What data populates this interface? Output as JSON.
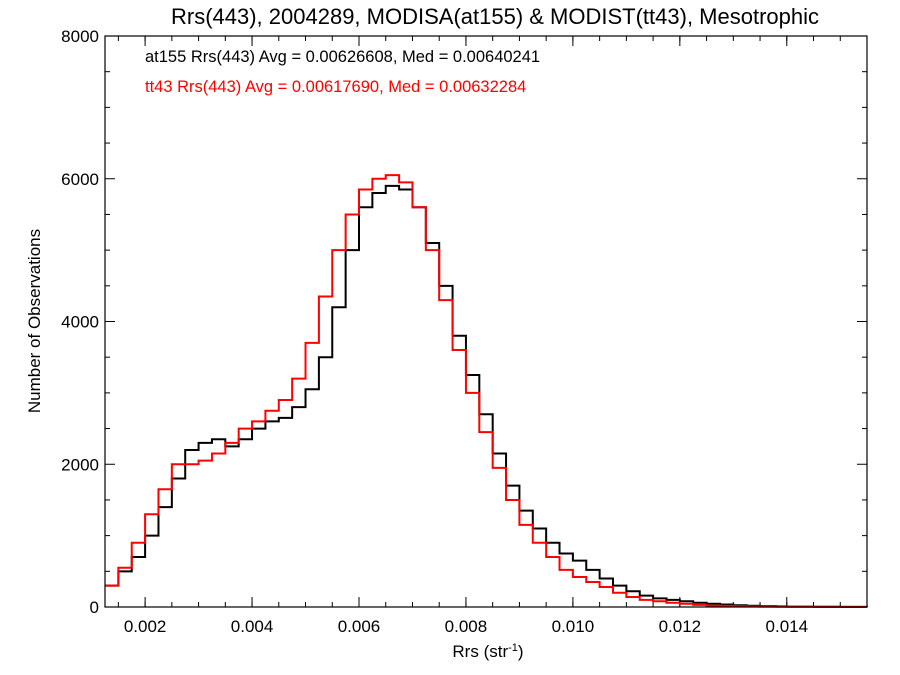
{
  "chart_data": {
    "type": "line",
    "step": true,
    "title": "Rrs(443), 2004289, MODISA(at155) & MODIST(tt43), Mesotrophic",
    "xlabel": "Rrs (str",
    "xlabel_sup": "-1",
    "xlabel_close": ")",
    "ylabel": "Number of Observations",
    "xlim": [
      0.00125,
      0.0155
    ],
    "ylim": [
      0,
      8000
    ],
    "x_ticks": [
      {
        "value": 0.002,
        "label": "0.002"
      },
      {
        "value": 0.004,
        "label": "0.004"
      },
      {
        "value": 0.006,
        "label": "0.006"
      },
      {
        "value": 0.008,
        "label": "0.008"
      },
      {
        "value": 0.01,
        "label": "0.010"
      },
      {
        "value": 0.012,
        "label": "0.012"
      },
      {
        "value": 0.014,
        "label": "0.014"
      }
    ],
    "y_ticks": [
      {
        "value": 0,
        "label": "0"
      },
      {
        "value": 2000,
        "label": "2000"
      },
      {
        "value": 4000,
        "label": "4000"
      },
      {
        "value": 6000,
        "label": "6000"
      },
      {
        "value": 8000,
        "label": "8000"
      }
    ],
    "annotations": [
      {
        "text": "at155 Rrs(443) Avg = 0.00626608, Med = 0.00640241",
        "color": "#000000"
      },
      {
        "text": "tt43 Rrs(443) Avg = 0.00617690, Med = 0.00632284",
        "color": "#ff0000"
      }
    ],
    "series": [
      {
        "color": "#000000",
        "x": [
          0.00125,
          0.0015,
          0.00175,
          0.002,
          0.00225,
          0.0025,
          0.00275,
          0.003,
          0.00325,
          0.0035,
          0.00375,
          0.004,
          0.00425,
          0.0045,
          0.00475,
          0.005,
          0.00525,
          0.0055,
          0.00575,
          0.006,
          0.00625,
          0.0065,
          0.00675,
          0.007,
          0.00725,
          0.0075,
          0.00775,
          0.008,
          0.00825,
          0.0085,
          0.00875,
          0.009,
          0.00925,
          0.0095,
          0.00975,
          0.01,
          0.01025,
          0.0105,
          0.01075,
          0.011,
          0.01125,
          0.0115,
          0.01175,
          0.012,
          0.01225,
          0.0125,
          0.01275,
          0.013,
          0.01325,
          0.0135,
          0.0138,
          0.014,
          0.0145,
          0.015,
          0.0155
        ],
        "y": [
          300,
          500,
          700,
          1000,
          1400,
          1800,
          2200,
          2300,
          2350,
          2250,
          2350,
          2500,
          2600,
          2650,
          2800,
          3050,
          3500,
          4200,
          5000,
          5600,
          5800,
          5900,
          5850,
          5600,
          5100,
          4500,
          3800,
          3250,
          2700,
          2150,
          1700,
          1350,
          1100,
          900,
          750,
          650,
          520,
          400,
          300,
          220,
          160,
          120,
          100,
          80,
          60,
          45,
          35,
          25,
          18,
          12,
          8,
          5,
          3,
          2,
          1
        ]
      },
      {
        "color": "#ff0000",
        "x": [
          0.00125,
          0.0015,
          0.00175,
          0.002,
          0.00225,
          0.0025,
          0.00275,
          0.003,
          0.00325,
          0.0035,
          0.00375,
          0.004,
          0.00425,
          0.0045,
          0.00475,
          0.005,
          0.00525,
          0.0055,
          0.00575,
          0.006,
          0.00625,
          0.0065,
          0.00675,
          0.007,
          0.00725,
          0.0075,
          0.00775,
          0.008,
          0.00825,
          0.0085,
          0.00875,
          0.009,
          0.00925,
          0.0095,
          0.00975,
          0.01,
          0.01025,
          0.0105,
          0.01075,
          0.011,
          0.01125,
          0.0115,
          0.01175,
          0.012,
          0.01225,
          0.0125,
          0.01275,
          0.013,
          0.01325,
          0.0135,
          0.0138,
          0.014,
          0.0145,
          0.015,
          0.0155
        ],
        "y": [
          300,
          550,
          900,
          1300,
          1650,
          2000,
          2000,
          2050,
          2150,
          2300,
          2500,
          2600,
          2750,
          2900,
          3200,
          3700,
          4350,
          5000,
          5500,
          5850,
          6000,
          6050,
          5950,
          5600,
          5000,
          4300,
          3600,
          3000,
          2450,
          1950,
          1500,
          1150,
          900,
          700,
          520,
          420,
          350,
          280,
          200,
          140,
          100,
          80,
          60,
          45,
          30,
          20,
          15,
          10,
          7,
          5,
          4,
          3,
          2,
          2,
          2
        ]
      }
    ]
  }
}
